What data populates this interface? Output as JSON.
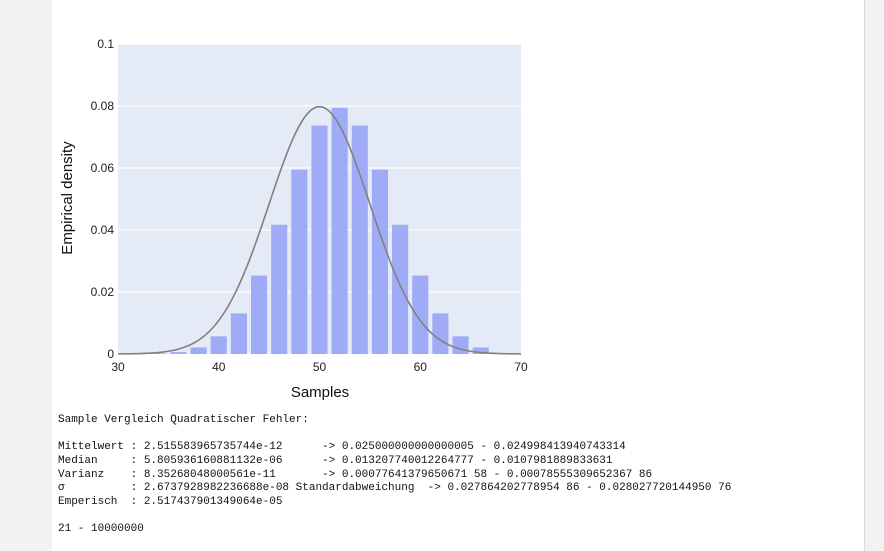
{
  "chart_data": {
    "type": "bar",
    "xlabel": "Samples",
    "ylabel": "Empirical density",
    "xlim": [
      30,
      70
    ],
    "ylim": [
      0,
      0.1
    ],
    "x_ticks": [
      "30",
      "40",
      "50",
      "60",
      "70"
    ],
    "y_ticks": [
      "0",
      "0.02",
      "0.04",
      "0.06",
      "0.08",
      "0.1"
    ],
    "grid": true,
    "bars": {
      "x": [
        34,
        36,
        38,
        40,
        42,
        44,
        46,
        48,
        50,
        52,
        54,
        56,
        58,
        60,
        62,
        64,
        66
      ],
      "values": [
        0.0002,
        0.0006,
        0.0021,
        0.0057,
        0.0131,
        0.0253,
        0.0417,
        0.0595,
        0.0737,
        0.0794,
        0.0737,
        0.0595,
        0.0417,
        0.0253,
        0.0131,
        0.0057,
        0.0021
      ],
      "color": "#9fabf7"
    },
    "curve": {
      "mean": 50,
      "std": 5,
      "color": "#808080"
    },
    "plot_background": "#e5ebf6"
  },
  "output": {
    "heading": "Sample Vergleich Quadratischer Fehler:",
    "rows": [
      "Mittelwert : 2.515583965735744e-12      -> 0.025000000000000005 - 0.024998413940743314",
      "Median     : 5.805936160881132e-06      -> 0.013207740012264777 - 0.0107981889833631",
      "Varianz    : 8.35268048000561e-11       -> 0.00077641379650671 58 - 0.00078555309652367 86",
      "σ          : 2.6737928982236688e-08 Standardabweichung  -> 0.027864202778954 86 - 0.028027720144950 76",
      "Emperisch  : 2.517437901349064e-05"
    ],
    "footer": "21 - 10000000"
  }
}
